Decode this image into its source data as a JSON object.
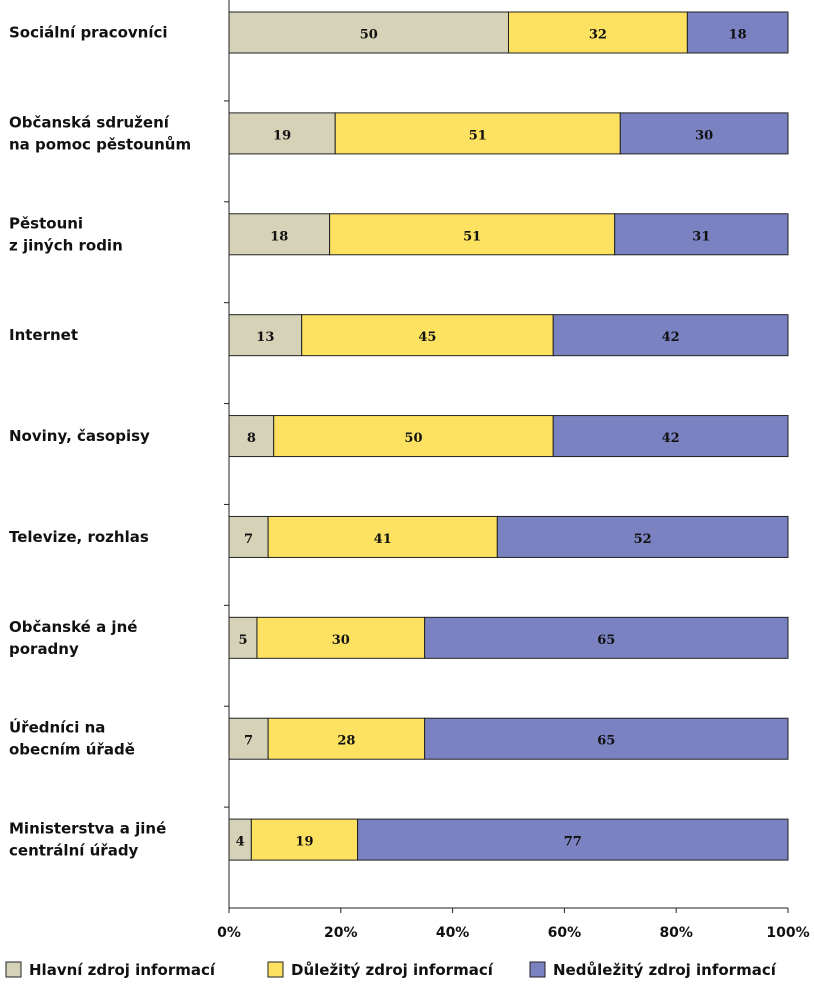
{
  "chart_data": {
    "type": "bar",
    "orientation": "horizontal",
    "stacked": true,
    "categories": [
      [
        "Sociální pracovníci"
      ],
      [
        "Občanská sdružení",
        "na pomoc pěstounům"
      ],
      [
        "Pěstouni",
        "z jiných rodin"
      ],
      [
        "Internet"
      ],
      [
        "Noviny, časopisy"
      ],
      [
        "Televize, rozhlas"
      ],
      [
        "Občanské a jné",
        "poradny"
      ],
      [
        "Úředníci na",
        "obecním  úřadě"
      ],
      [
        "Ministerstva a jiné",
        "centrální úřady"
      ]
    ],
    "series": [
      {
        "name": "Hlavní zdroj informací",
        "color": "#d5d2b8",
        "values": [
          50,
          19,
          18,
          13,
          8,
          7,
          5,
          7,
          4
        ]
      },
      {
        "name": "Důležitý zdroj informací",
        "color": "#fde262",
        "values": [
          32,
          51,
          51,
          45,
          50,
          41,
          30,
          28,
          19
        ]
      },
      {
        "name": "Nedůležitý zdroj informací",
        "color": "#7a82c2",
        "values": [
          18,
          30,
          31,
          42,
          42,
          52,
          65,
          65,
          77
        ]
      }
    ],
    "xlim": [
      0,
      100
    ],
    "xticks": [
      "0%",
      "20%",
      "40%",
      "60%",
      "80%",
      "100%"
    ],
    "legend_position": "bottom",
    "grid": false
  }
}
